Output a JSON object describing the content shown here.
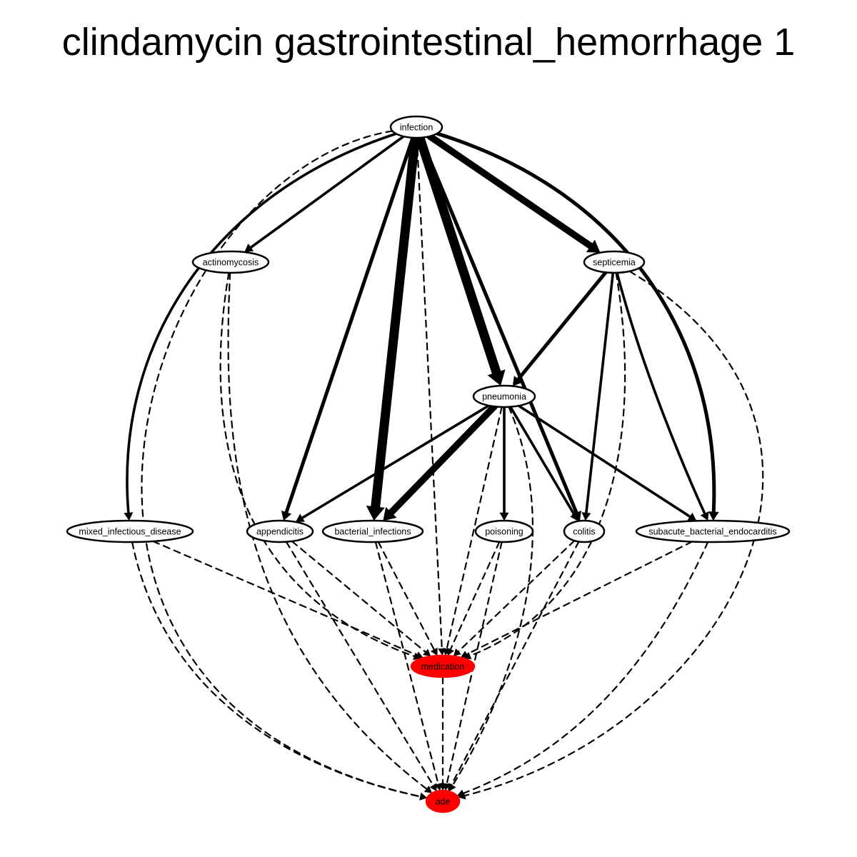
{
  "title": "clindamycin gastrointestinal_hemorrhage 1",
  "colors": {
    "highlight": "#ff0000",
    "node_fill": "#ffffff",
    "edge": "#000000"
  },
  "nodes": [
    {
      "id": "infection",
      "label": "infection",
      "highlight": false
    },
    {
      "id": "actinomycosis",
      "label": "actinomycosis",
      "highlight": false
    },
    {
      "id": "septicemia",
      "label": "septicemia",
      "highlight": false
    },
    {
      "id": "pneumonia",
      "label": "pneumonia",
      "highlight": false
    },
    {
      "id": "mixed_infectious_disease",
      "label": "mixed_infectious_disease",
      "highlight": false
    },
    {
      "id": "appendicitis",
      "label": "appendicitis",
      "highlight": false
    },
    {
      "id": "bacterial_infections",
      "label": "bacterial_infections",
      "highlight": false
    },
    {
      "id": "poisoning",
      "label": "poisoning",
      "highlight": false
    },
    {
      "id": "colitis",
      "label": "colitis",
      "highlight": false
    },
    {
      "id": "subacute_bacterial_endocarditis",
      "label": "subacute_bacterial_endocarditis",
      "highlight": false
    },
    {
      "id": "medication",
      "label": "medication",
      "highlight": true
    },
    {
      "id": "ade",
      "label": "ade",
      "highlight": true
    }
  ],
  "edges": [
    {
      "from": "infection",
      "to": "actinomycosis",
      "style": "solid",
      "weight": 2
    },
    {
      "from": "infection",
      "to": "septicemia",
      "style": "solid",
      "weight": 5
    },
    {
      "from": "infection",
      "to": "pneumonia",
      "style": "solid",
      "weight": 6
    },
    {
      "from": "infection",
      "to": "mixed_infectious_disease",
      "style": "solid",
      "weight": 2
    },
    {
      "from": "infection",
      "to": "appendicitis",
      "style": "solid",
      "weight": 3
    },
    {
      "from": "infection",
      "to": "bacterial_infections",
      "style": "solid",
      "weight": 6
    },
    {
      "from": "infection",
      "to": "colitis",
      "style": "solid",
      "weight": 3
    },
    {
      "from": "infection",
      "to": "subacute_bacterial_endocarditis",
      "style": "solid",
      "weight": 3
    },
    {
      "from": "infection",
      "to": "medication",
      "style": "dashed",
      "weight": 1
    },
    {
      "from": "infection",
      "to": "ade",
      "style": "dashed",
      "weight": 1
    },
    {
      "from": "septicemia",
      "to": "pneumonia",
      "style": "solid",
      "weight": 3
    },
    {
      "from": "septicemia",
      "to": "colitis",
      "style": "solid",
      "weight": 2
    },
    {
      "from": "septicemia",
      "to": "subacute_bacterial_endocarditis",
      "style": "solid",
      "weight": 2
    },
    {
      "from": "septicemia",
      "to": "medication",
      "style": "dashed",
      "weight": 1
    },
    {
      "from": "septicemia",
      "to": "ade",
      "style": "dashed",
      "weight": 1
    },
    {
      "from": "actinomycosis",
      "to": "medication",
      "style": "dashed",
      "weight": 1
    },
    {
      "from": "actinomycosis",
      "to": "ade",
      "style": "dashed",
      "weight": 1
    },
    {
      "from": "pneumonia",
      "to": "appendicitis",
      "style": "solid",
      "weight": 2
    },
    {
      "from": "pneumonia",
      "to": "bacterial_infections",
      "style": "solid",
      "weight": 5
    },
    {
      "from": "pneumonia",
      "to": "poisoning",
      "style": "solid",
      "weight": 2
    },
    {
      "from": "pneumonia",
      "to": "colitis",
      "style": "solid",
      "weight": 2
    },
    {
      "from": "pneumonia",
      "to": "subacute_bacterial_endocarditis",
      "style": "solid",
      "weight": 2
    },
    {
      "from": "pneumonia",
      "to": "medication",
      "style": "dashed",
      "weight": 1
    },
    {
      "from": "pneumonia",
      "to": "ade",
      "style": "dashed",
      "weight": 1
    },
    {
      "from": "mixed_infectious_disease",
      "to": "medication",
      "style": "dashed",
      "weight": 1
    },
    {
      "from": "mixed_infectious_disease",
      "to": "ade",
      "style": "dashed",
      "weight": 1
    },
    {
      "from": "appendicitis",
      "to": "medication",
      "style": "dashed",
      "weight": 1
    },
    {
      "from": "appendicitis",
      "to": "ade",
      "style": "dashed",
      "weight": 1
    },
    {
      "from": "bacterial_infections",
      "to": "medication",
      "style": "dashed",
      "weight": 1
    },
    {
      "from": "bacterial_infections",
      "to": "ade",
      "style": "dashed",
      "weight": 1
    },
    {
      "from": "poisoning",
      "to": "medication",
      "style": "dashed",
      "weight": 1
    },
    {
      "from": "poisoning",
      "to": "ade",
      "style": "dashed",
      "weight": 1
    },
    {
      "from": "colitis",
      "to": "medication",
      "style": "dashed",
      "weight": 1
    },
    {
      "from": "colitis",
      "to": "ade",
      "style": "dashed",
      "weight": 1
    },
    {
      "from": "subacute_bacterial_endocarditis",
      "to": "medication",
      "style": "dashed",
      "weight": 1
    },
    {
      "from": "subacute_bacterial_endocarditis",
      "to": "ade",
      "style": "dashed",
      "weight": 1
    },
    {
      "from": "medication",
      "to": "ade",
      "style": "dashed",
      "weight": 1
    }
  ]
}
